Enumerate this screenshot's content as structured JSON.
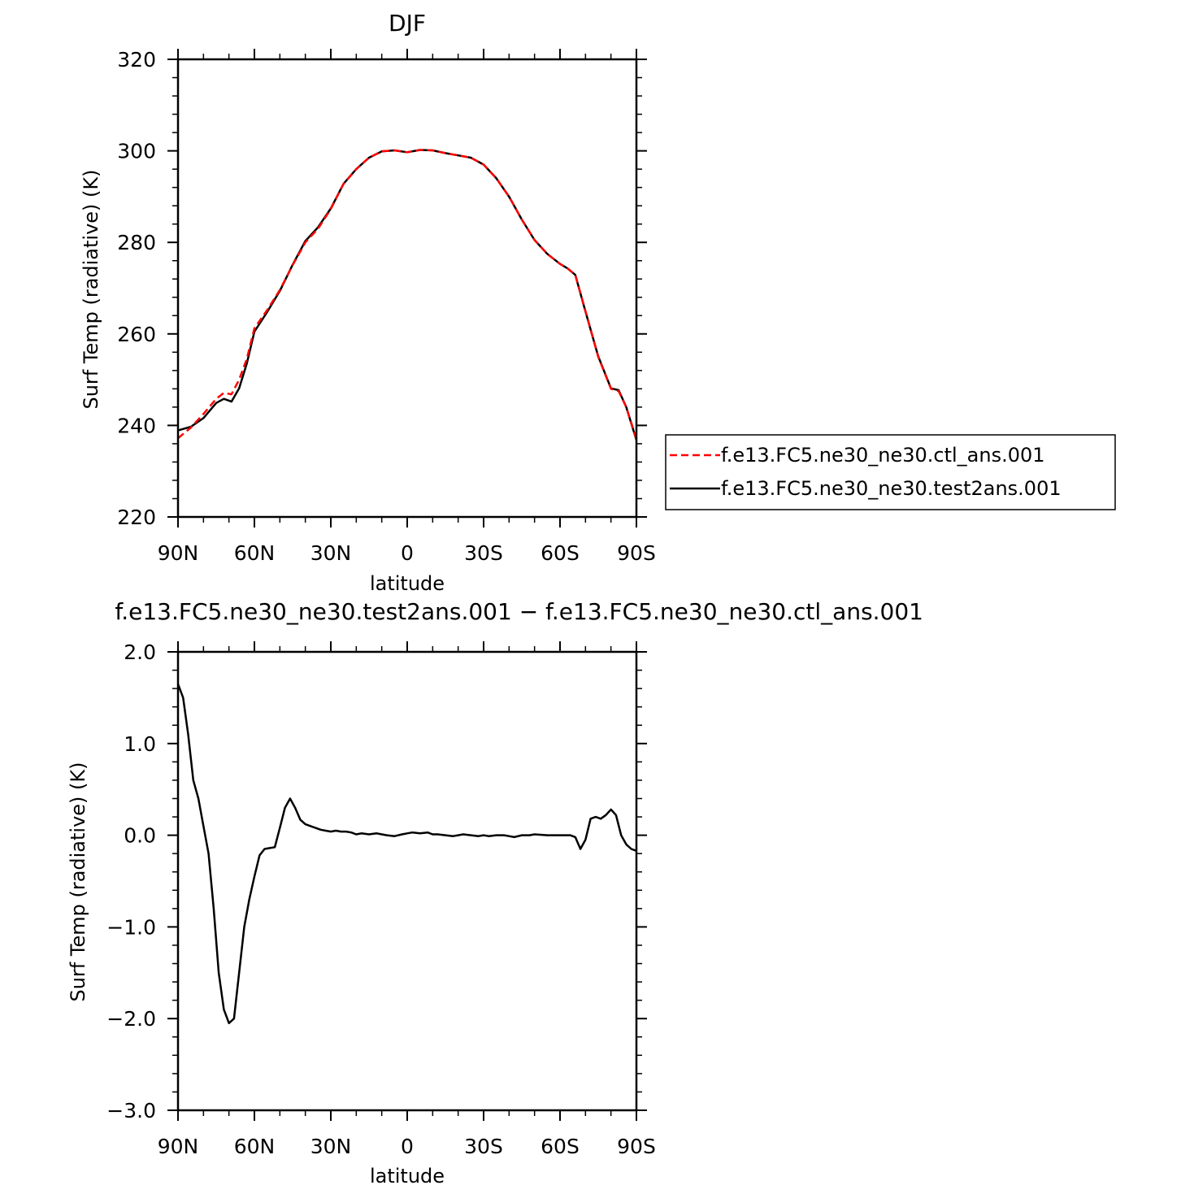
{
  "colors": {
    "ctl": "#ff0000",
    "test": "#000000",
    "axes": "#000000",
    "background": "#ffffff"
  },
  "chart_data": [
    {
      "type": "line",
      "title": "DJF",
      "xlabel": "latitude",
      "ylabel": "Surf Temp (radiative) (K)",
      "xlim": [
        90,
        -90
      ],
      "ylim": [
        220,
        320
      ],
      "xticks": [
        90,
        60,
        30,
        0,
        -30,
        -60,
        -90
      ],
      "xtick_labels": [
        "90N",
        "60N",
        "30N",
        "0",
        "30S",
        "60S",
        "90S"
      ],
      "yticks": [
        220,
        240,
        260,
        280,
        300,
        320
      ],
      "ytick_labels": [
        "220",
        "240",
        "260",
        "280",
        "300",
        "320"
      ],
      "grid": false,
      "legend_position": "right-outside",
      "x": [
        90,
        85,
        80,
        75,
        72,
        69,
        66,
        63,
        60,
        55,
        50,
        45,
        40,
        35,
        30,
        25,
        20,
        15,
        10,
        5,
        0,
        -5,
        -10,
        -15,
        -20,
        -25,
        -30,
        -35,
        -40,
        -45,
        -50,
        -55,
        -60,
        -63,
        -66,
        -70,
        -75,
        -80,
        -83,
        -86,
        -90
      ],
      "series": [
        {
          "name": "f.e13.FC5.ne30_ne30.ctl_ans.001",
          "style": "dashed",
          "color": "#ff0000",
          "values": [
            237.2,
            239.5,
            242.5,
            245.8,
            247.1,
            246.8,
            250.0,
            254.5,
            261.2,
            265.2,
            269.6,
            275.0,
            280.0,
            283.0,
            287.3,
            292.8,
            296.0,
            298.5,
            299.9,
            300.1,
            299.7,
            300.2,
            300.1,
            299.5,
            299.0,
            298.5,
            297.0,
            294.0,
            290.0,
            285.0,
            280.5,
            277.5,
            275.3,
            274.3,
            272.9,
            265.0,
            255.0,
            248.0,
            247.5,
            244.0,
            237.0
          ]
        },
        {
          "name": "f.e13.FC5.ne30_ne30.test2ans.001",
          "style": "solid",
          "color": "#000000",
          "values": [
            238.9,
            239.7,
            241.6,
            244.9,
            245.8,
            245.2,
            248.1,
            253.5,
            260.5,
            264.8,
            269.4,
            275.1,
            280.3,
            283.3,
            287.4,
            292.8,
            296.0,
            298.5,
            299.9,
            300.1,
            299.7,
            300.2,
            300.1,
            299.5,
            299.0,
            298.5,
            297.0,
            294.0,
            290.0,
            285.0,
            280.5,
            277.5,
            275.3,
            274.3,
            272.9,
            264.9,
            255.1,
            248.1,
            247.7,
            244.0,
            236.8
          ]
        }
      ]
    },
    {
      "type": "line",
      "title": "f.e13.FC5.ne30_ne30.test2ans.001 − f.e13.FC5.ne30_ne30.ctl_ans.001",
      "xlabel": "latitude",
      "ylabel": "Surf Temp (radiative) (K)",
      "xlim": [
        90,
        -90
      ],
      "ylim": [
        -3.0,
        2.0
      ],
      "xticks": [
        90,
        60,
        30,
        0,
        -30,
        -60,
        -90
      ],
      "xtick_labels": [
        "90N",
        "60N",
        "30N",
        "0",
        "30S",
        "60S",
        "90S"
      ],
      "yticks": [
        -3.0,
        -2.0,
        -1.0,
        0.0,
        1.0,
        2.0
      ],
      "ytick_labels": [
        "−3.0",
        "−2.0",
        "−1.0",
        "0.0",
        "1.0",
        "2.0"
      ],
      "grid": false,
      "series": [
        {
          "color": "#000000",
          "style": "solid",
          "x": [
            90,
            88,
            86,
            84,
            82,
            80,
            78,
            76,
            74,
            72,
            70,
            68,
            66,
            64,
            62,
            60,
            58,
            56,
            54,
            52,
            50,
            48,
            46,
            44,
            42,
            40,
            38,
            36,
            34,
            32,
            30,
            28,
            26,
            24,
            22,
            20,
            18,
            15,
            12,
            10,
            8,
            5,
            2,
            0,
            -2,
            -5,
            -8,
            -10,
            -12,
            -15,
            -18,
            -20,
            -22,
            -25,
            -28,
            -30,
            -32,
            -35,
            -38,
            -40,
            -42,
            -45,
            -48,
            -50,
            -55,
            -60,
            -62,
            -64,
            -66,
            -68,
            -70,
            -72,
            -74,
            -76,
            -78,
            -80,
            -82,
            -84,
            -86,
            -88,
            -90
          ],
          "values": [
            1.65,
            1.5,
            1.1,
            0.6,
            0.4,
            0.1,
            -0.2,
            -0.8,
            -1.5,
            -1.9,
            -2.05,
            -2.0,
            -1.5,
            -1.0,
            -0.7,
            -0.45,
            -0.22,
            -0.15,
            -0.14,
            -0.13,
            0.08,
            0.3,
            0.4,
            0.3,
            0.17,
            0.12,
            0.1,
            0.08,
            0.06,
            0.05,
            0.04,
            0.05,
            0.04,
            0.04,
            0.03,
            0.01,
            0.02,
            0.01,
            0.02,
            0.01,
            0.0,
            -0.01,
            0.01,
            0.02,
            0.03,
            0.02,
            0.03,
            0.01,
            0.01,
            0.0,
            -0.01,
            0.0,
            0.01,
            0.0,
            -0.01,
            0.0,
            -0.01,
            0.0,
            0.0,
            -0.01,
            -0.02,
            0.0,
            0.0,
            0.01,
            0.0,
            0.0,
            0.0,
            0.0,
            -0.02,
            -0.15,
            -0.05,
            0.18,
            0.2,
            0.18,
            0.22,
            0.28,
            0.22,
            0.0,
            -0.1,
            -0.15,
            -0.17
          ]
        }
      ]
    }
  ]
}
